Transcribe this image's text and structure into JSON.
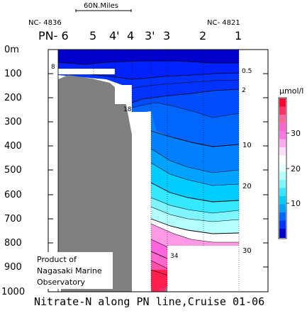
{
  "chart_data": {
    "type": "contour",
    "title": "Nitrate-N along PN line,Cruise 01-06",
    "scale_label": "60N.Miles",
    "ylabel": "",
    "unit_label": "μmol/l",
    "depth_axis": {
      "unit": "m",
      "min": 0,
      "max": 1000,
      "ticks": [
        "0m",
        "100",
        "200",
        "300",
        "400",
        "500",
        "600",
        "700",
        "800",
        "900",
        "1000"
      ]
    },
    "stations": [
      "PN- 6",
      "5",
      "4'",
      "4",
      "3'",
      "3",
      "2",
      "1"
    ],
    "station_ids": {
      "left": "NC- 4836",
      "right": "NC- 4821"
    },
    "contour_labels": [
      {
        "value": "8",
        "station": "PN- 6",
        "depth": 80
      },
      {
        "value": "0.5",
        "station": "1",
        "depth": 100
      },
      {
        "value": "2",
        "station": "1",
        "depth": 185
      },
      {
        "value": "18",
        "station": "4",
        "depth": 235
      },
      {
        "value": "10",
        "station": "1",
        "depth": 400
      },
      {
        "value": "20",
        "station": "1",
        "depth": 590
      },
      {
        "value": "34",
        "station": "3'",
        "depth": 860
      },
      {
        "value": "30",
        "station": "1",
        "depth": 825
      }
    ],
    "colorbar": {
      "ticks": [
        "30",
        "20",
        "10"
      ],
      "levels_top_to_bottom": [
        "#ff0033",
        "#ff3366",
        "#ff6699",
        "#ff66cc",
        "#ff77e5",
        "#ffaaf0",
        "#ffddf8",
        "#ffffff",
        "#e6ffff",
        "#b3ffff",
        "#7ff5ff",
        "#33e8ff",
        "#00ccff",
        "#00a3ff",
        "#0066ff",
        "#0033ff",
        "#0000cc"
      ]
    },
    "credit": [
      "Product of",
      "Nagasaki Marine",
      "Observatory"
    ],
    "grid": false,
    "legend": "right"
  }
}
